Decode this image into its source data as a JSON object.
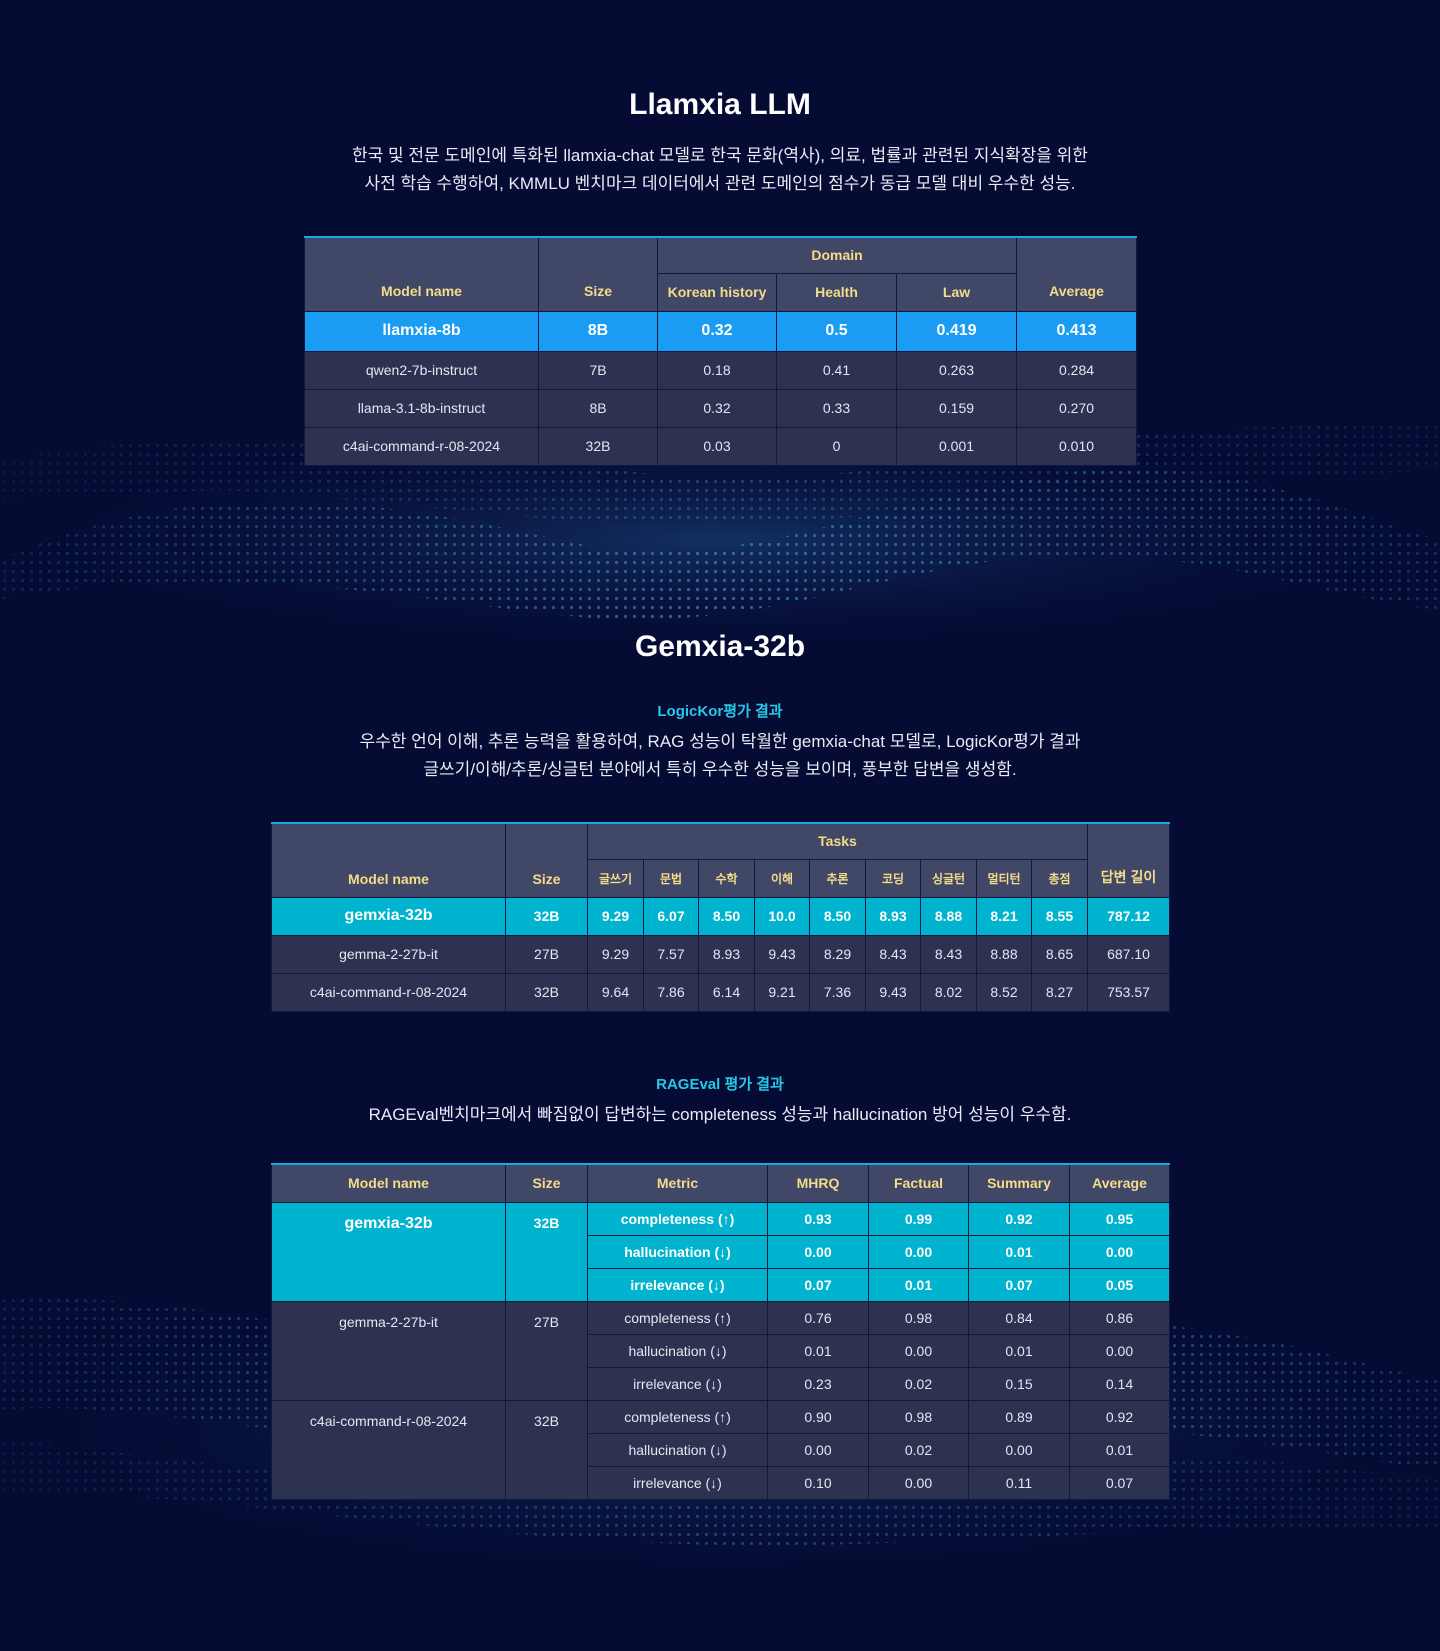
{
  "section1": {
    "title": "Llamxia LLM",
    "desc_line1": "한국 및 전문 도메인에 특화된 llamxia-chat 모델로 한국 문화(역사), 의료, 법률과 관련된 지식확장을 위한",
    "desc_line2": "사전 학습 수행하여, KMMLU 벤치마크 데이터에서 관련 도메인의 점수가 동급 모델 대비 우수한 성능."
  },
  "table1": {
    "headers": {
      "model": "Model name",
      "size": "Size",
      "domain": "Domain",
      "korean_history": "Korean history",
      "health": "Health",
      "law": "Law",
      "average": "Average"
    },
    "rows": [
      {
        "model": "llamxia-8b",
        "size": "8B",
        "korean_history": "0.32",
        "health": "0.5",
        "law": "0.419",
        "average": "0.413"
      },
      {
        "model": "qwen2-7b-instruct",
        "size": "7B",
        "korean_history": "0.18",
        "health": "0.41",
        "law": "0.263",
        "average": "0.284"
      },
      {
        "model": "llama-3.1-8b-instruct",
        "size": "8B",
        "korean_history": "0.32",
        "health": "0.33",
        "law": "0.159",
        "average": "0.270"
      },
      {
        "model": "c4ai-command-r-08-2024",
        "size": "32B",
        "korean_history": "0.03",
        "health": "0",
        "law": "0.001",
        "average": "0.010"
      }
    ]
  },
  "section2": {
    "title": "Gemxia-32b",
    "subtitle": "LogicKor평가 결과",
    "desc_line1": "우수한 언어 이해, 추론 능력을 활용하여, RAG 성능이 탁월한 gemxia-chat 모델로, LogicKor평가 결과",
    "desc_line2": "글쓰기/이해/추론/싱글턴 분야에서 특히 우수한 성능을 보이며, 풍부한 답변을 생성함."
  },
  "table2": {
    "headers": {
      "model": "Model name",
      "size": "Size",
      "tasks": "Tasks",
      "task_cols": [
        "글쓰기",
        "문법",
        "수학",
        "이해",
        "추론",
        "코딩",
        "싱글턴",
        "멀티턴",
        "총점"
      ],
      "answer_length": "답변 길이"
    },
    "rows": [
      {
        "model": "gemxia-32b",
        "size": "32B",
        "scores": [
          "9.29",
          "6.07",
          "8.50",
          "10.0",
          "8.50",
          "8.93",
          "8.88",
          "8.21",
          "8.55"
        ],
        "answer_length": "787.12"
      },
      {
        "model": "gemma-2-27b-it",
        "size": "27B",
        "scores": [
          "9.29",
          "7.57",
          "8.93",
          "9.43",
          "8.29",
          "8.43",
          "8.43",
          "8.88",
          "8.65"
        ],
        "answer_length": "687.10"
      },
      {
        "model": "c4ai-command-r-08-2024",
        "size": "32B",
        "scores": [
          "9.64",
          "7.86",
          "6.14",
          "9.21",
          "7.36",
          "9.43",
          "8.02",
          "8.52",
          "8.27"
        ],
        "answer_length": "753.57"
      }
    ]
  },
  "section3": {
    "subtitle": "RAGEval 평가 결과",
    "desc": "RAGEval벤치마크에서 빠짐없이 답변하는 completeness 성능과 hallucination 방어 성능이 우수함."
  },
  "table3": {
    "headers": {
      "model": "Model name",
      "size": "Size",
      "metric": "Metric",
      "mhrq": "MHRQ",
      "factual": "Factual",
      "summary": "Summary",
      "average": "Average"
    },
    "groups": [
      {
        "model": "gemxia-32b",
        "size": "32B",
        "rows": [
          {
            "metric": "completeness (↑)",
            "mhrq": "0.93",
            "factual": "0.99",
            "summary": "0.92",
            "average": "0.95"
          },
          {
            "metric": "hallucination (↓)",
            "mhrq": "0.00",
            "factual": "0.00",
            "summary": "0.01",
            "average": "0.00"
          },
          {
            "metric": "irrelevance (↓)",
            "mhrq": "0.07",
            "factual": "0.01",
            "summary": "0.07",
            "average": "0.05"
          }
        ]
      },
      {
        "model": "gemma-2-27b-it",
        "size": "27B",
        "rows": [
          {
            "metric": "completeness (↑)",
            "mhrq": "0.76",
            "factual": "0.98",
            "summary": "0.84",
            "average": "0.86"
          },
          {
            "metric": "hallucination (↓)",
            "mhrq": "0.01",
            "factual": "0.00",
            "summary": "0.01",
            "average": "0.00"
          },
          {
            "metric": "irrelevance (↓)",
            "mhrq": "0.23",
            "factual": "0.02",
            "summary": "0.15",
            "average": "0.14"
          }
        ]
      },
      {
        "model": "c4ai-command-r-08-2024",
        "size": "32B",
        "rows": [
          {
            "metric": "completeness (↑)",
            "mhrq": "0.90",
            "factual": "0.98",
            "summary": "0.89",
            "average": "0.92"
          },
          {
            "metric": "hallucination (↓)",
            "mhrq": "0.00",
            "factual": "0.02",
            "summary": "0.00",
            "average": "0.01"
          },
          {
            "metric": "irrelevance (↓)",
            "mhrq": "0.10",
            "factual": "0.00",
            "summary": "0.11",
            "average": "0.07"
          }
        ]
      }
    ]
  },
  "colors": {
    "background": "#050b33",
    "header_bg": "#414766",
    "header_text": "#f3dc8a",
    "row_bg": "#2d3251",
    "highlight_blue": "#1a9cf2",
    "highlight_cyan": "#00b4cf",
    "subtitle_cyan": "#27c7e8"
  }
}
